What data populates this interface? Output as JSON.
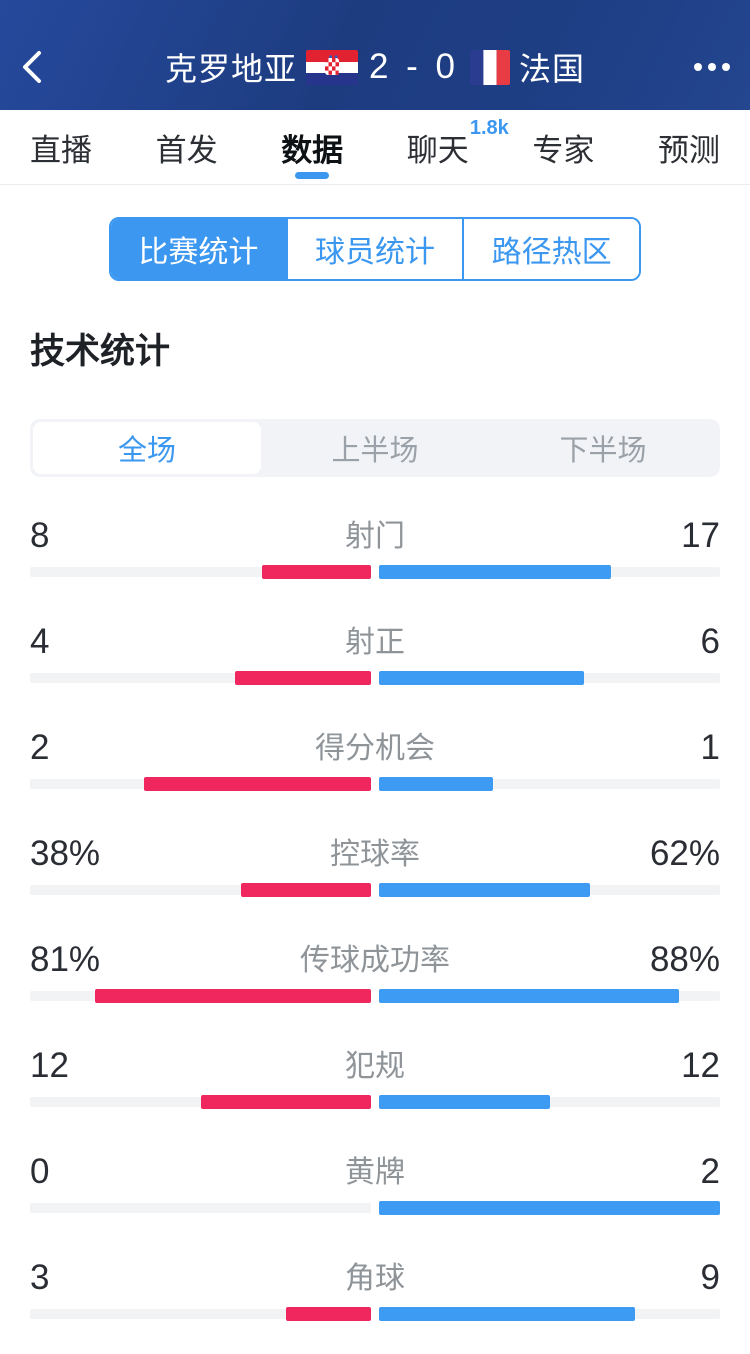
{
  "header": {
    "home_team": "克罗地亚",
    "away_team": "法国",
    "score": "2 - 0"
  },
  "tabs": {
    "items": [
      {
        "label": "直播"
      },
      {
        "label": "首发"
      },
      {
        "label": "数据",
        "active": true
      },
      {
        "label": "聊天",
        "badge": "1.8k"
      },
      {
        "label": "专家"
      },
      {
        "label": "预测"
      }
    ]
  },
  "subtabs": {
    "items": [
      {
        "label": "比赛统计",
        "active": true
      },
      {
        "label": "球员统计"
      },
      {
        "label": "路径热区"
      }
    ]
  },
  "section": {
    "title": "技术统计"
  },
  "periods": {
    "items": [
      {
        "label": "全场",
        "active": true
      },
      {
        "label": "上半场"
      },
      {
        "label": "下半场"
      }
    ]
  },
  "stats": [
    {
      "label": "射门",
      "home": "8",
      "away": "17"
    },
    {
      "label": "射正",
      "home": "4",
      "away": "6"
    },
    {
      "label": "得分机会",
      "home": "2",
      "away": "1"
    },
    {
      "label": "控球率",
      "home": "38%",
      "away": "62%"
    },
    {
      "label": "传球成功率",
      "home": "81%",
      "away": "88%"
    },
    {
      "label": "犯规",
      "home": "12",
      "away": "12"
    },
    {
      "label": "黄牌",
      "home": "0",
      "away": "2"
    },
    {
      "label": "角球",
      "home": "3",
      "away": "9"
    }
  ],
  "chart_data": {
    "type": "bar",
    "title": "技术统计",
    "period": "全场",
    "layout": "mirrored horizontal bars growing from center; count bars scaled by value/(home+away), percent bars scaled by percent of half-track",
    "categories": [
      "射门",
      "射正",
      "得分机会",
      "控球率",
      "传球成功率",
      "犯规",
      "黄牌",
      "角球"
    ],
    "series": [
      {
        "name": "克罗地亚",
        "color": "#f0265f",
        "values": [
          8,
          4,
          2,
          38,
          81,
          12,
          0,
          3
        ],
        "display": [
          "8",
          "4",
          "2",
          "38%",
          "81%",
          "12",
          "0",
          "3"
        ]
      },
      {
        "name": "法国",
        "color": "#3e9bf3",
        "values": [
          17,
          6,
          1,
          62,
          88,
          12,
          2,
          9
        ],
        "display": [
          "17",
          "6",
          "1",
          "62%",
          "88%",
          "12",
          "2",
          "9"
        ]
      }
    ]
  },
  "colors": {
    "accent": "#3b97f0",
    "home": "#f0265f",
    "away": "#3e9bf3",
    "track": "#f2f3f5",
    "header_bg": "#1e3e82"
  }
}
